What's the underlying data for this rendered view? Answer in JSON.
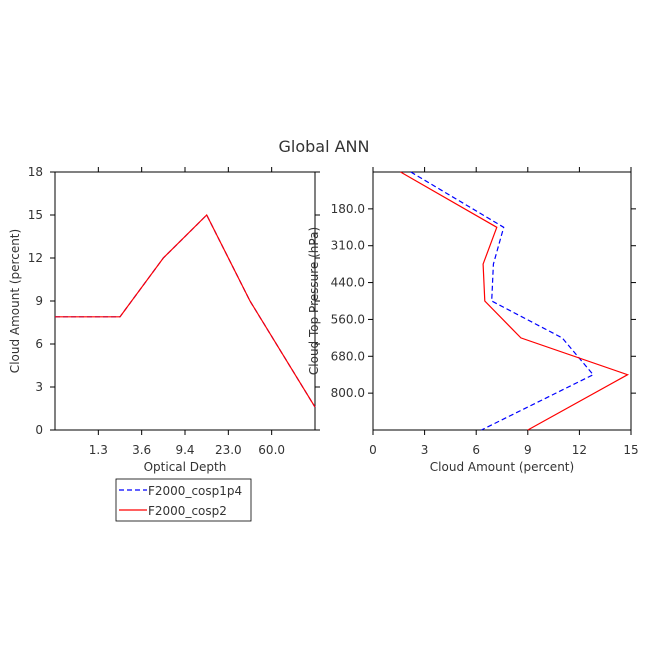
{
  "title": "Global ANN",
  "chart_data": [
    {
      "type": "line",
      "xlabel": "Optical Depth",
      "ylabel": "Cloud Amount (percent)",
      "x_tick_labels": [
        "1.3",
        "3.6",
        "9.4",
        "23.0",
        "60.0"
      ],
      "x_bin_edges": [
        "0",
        "1.3",
        "3.6",
        "9.4",
        "23.0",
        "60.0",
        "inf"
      ],
      "y_ticks": [
        0,
        3,
        6,
        9,
        12,
        15,
        18
      ],
      "ylim": [
        0,
        18
      ],
      "series": [
        {
          "name": "F2000_cosp1p4",
          "color": "#0000ff",
          "dash": true,
          "values": [
            7.9,
            7.9,
            12.0,
            15.0,
            9.0,
            1.6
          ]
        },
        {
          "name": "F2000_cosp2",
          "color": "#ff0000",
          "dash": false,
          "values": [
            7.9,
            7.9,
            12.0,
            15.0,
            9.0,
            1.6
          ]
        }
      ]
    },
    {
      "type": "line",
      "xlabel": "Cloud Amount (percent)",
      "ylabel": "Cloud Top Pressure (hPa)",
      "x_ticks": [
        0,
        3,
        6,
        9,
        12,
        15
      ],
      "xlim": [
        0,
        15
      ],
      "y_tick_labels": [
        "180.0",
        "310.0",
        "440.0",
        "560.0",
        "680.0",
        "800.0"
      ],
      "y_bin_edges": [
        "50",
        "180",
        "310",
        "440",
        "560",
        "680",
        "800",
        "1000"
      ],
      "series": [
        {
          "name": "F2000_cosp1p4",
          "color": "#0000ff",
          "dash": true,
          "values": [
            2.2,
            7.6,
            7.0,
            6.9,
            11.0,
            12.8,
            6.3
          ]
        },
        {
          "name": "F2000_cosp2",
          "color": "#ff0000",
          "dash": false,
          "values": [
            1.6,
            7.2,
            6.4,
            6.5,
            8.6,
            14.8,
            9.0
          ]
        }
      ]
    }
  ],
  "legend": [
    {
      "label": "F2000_cosp1p4",
      "color": "#0000ff",
      "dash": true
    },
    {
      "label": "F2000_cosp2",
      "color": "#ff0000",
      "dash": false
    }
  ]
}
